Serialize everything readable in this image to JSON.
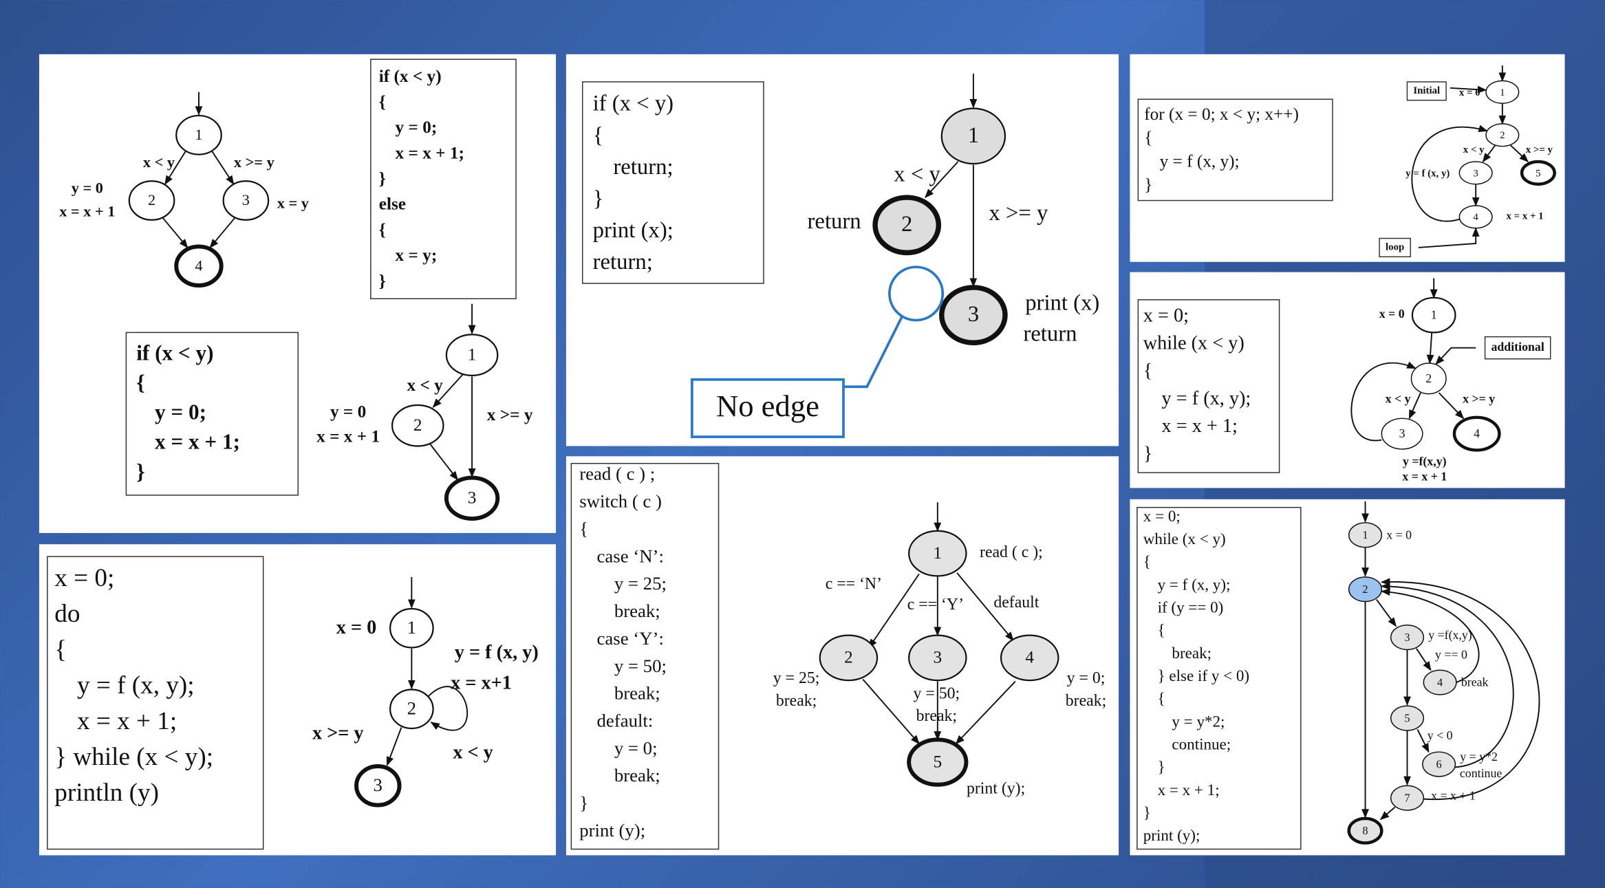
{
  "diagrams": [
    {
      "code": [
        "if (x < y)",
        "{",
        "y = 0;",
        "x = x + 1;",
        "}",
        "else",
        "{",
        "x = y;",
        "}"
      ],
      "nodes": [
        "1",
        "2",
        "3",
        "4"
      ],
      "labels": [
        "x < y",
        "x >= y",
        "y = 0",
        "x = x + 1",
        "x = y"
      ]
    },
    {
      "code": [
        "if (x < y)",
        "{",
        "y = 0;",
        "x = x + 1;",
        "}"
      ],
      "nodes": [
        "1",
        "2",
        "3"
      ],
      "labels": [
        "x < y",
        "x >= y",
        "y = 0",
        "x = x + 1"
      ]
    },
    {
      "code": [
        "if (x < y)",
        "{",
        "return;",
        "}",
        "print (x);",
        "return;"
      ],
      "nodes": [
        "1",
        "2",
        "3"
      ],
      "labels": [
        "x < y",
        "x >= y",
        "return",
        "print (x)",
        "return"
      ],
      "callout": "No edge"
    },
    {
      "code": [
        "x = 0;",
        "do",
        "{",
        "y = f (x, y);",
        "x = x + 1;",
        "} while (x < y);",
        "println (y)"
      ],
      "nodes": [
        "1",
        "2",
        "3"
      ],
      "labels": [
        "x = 0",
        "y = f (x, y)",
        "x = x+1",
        "x >= y",
        "x < y"
      ]
    },
    {
      "code": [
        "read ( c ) ;",
        "switch ( c )",
        "{",
        "case ‘N’:",
        "y = 25;",
        "break;",
        "case ‘Y’:",
        "y = 50;",
        "break;",
        "default:",
        "y = 0;",
        "break;",
        "}",
        "print (y);"
      ],
      "nodes": [
        "1",
        "2",
        "3",
        "4",
        "5"
      ],
      "labels": [
        "read ( c );",
        "c == ‘N’",
        "c == ‘Y’",
        "default",
        "y = 25;",
        "break;",
        "y = 50;",
        "break;",
        "y = 0;",
        "break;",
        "print (y);"
      ]
    },
    {
      "code": [
        "for (x = 0; x < y; x++)",
        "{",
        "y = f (x, y);",
        "}"
      ],
      "nodes": [
        "1",
        "2",
        "3",
        "4",
        "5"
      ],
      "labels": [
        "Initial",
        "x = 0",
        "x < y",
        "x >= y",
        "y = f (x, y)",
        "x = x + 1",
        "loop"
      ]
    },
    {
      "code": [
        "x = 0;",
        "while (x < y)",
        "{",
        "y = f (x, y);",
        "x = x + 1;",
        "}"
      ],
      "nodes": [
        "1",
        "2",
        "3",
        "4"
      ],
      "labels": [
        "x = 0",
        "additional",
        "x < y",
        "x >= y",
        "y =f(x,y)",
        "x = x + 1"
      ]
    },
    {
      "code": [
        "x = 0;",
        "while (x < y)",
        "{",
        "y = f (x, y);",
        "if (y == 0)",
        "{",
        "break;",
        "} else if y < 0)",
        "{",
        "y = y*2;",
        "continue;",
        "}",
        "x = x + 1;",
        "}",
        "print (y);"
      ],
      "nodes": [
        "1",
        "2",
        "3",
        "4",
        "5",
        "6",
        "7",
        "8"
      ],
      "labels": [
        "x = 0",
        "y =f(x,y)",
        "y == 0",
        "break",
        "y < 0",
        "y = y*2",
        "continue",
        "x = x + 1"
      ]
    }
  ]
}
